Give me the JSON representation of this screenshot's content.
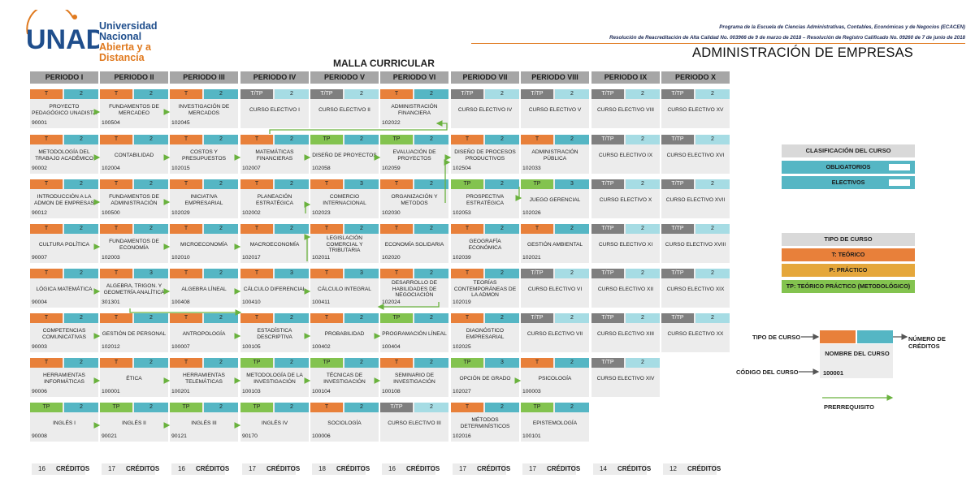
{
  "logo": {
    "brand": "UNAD",
    "line1": "Universidad Nacional",
    "line2": "Abierta y a Distancia"
  },
  "header": {
    "program": "Programa de la Escuela de Ciencias Administrativas, Contables, Económicas y de Negocios (ECACEN)",
    "resolution": "Resolución de Reacreditación de Alta Calidad No. 003966 de 9 de marzo de 2018 – Resolución de Registro Calificado No. 09260 de 7 de junio de 2018",
    "title": "ADMINISTRACIÓN DE EMPRESAS",
    "subtitle": "MALLA CURRICULAR"
  },
  "credits_label": "CRÉDITOS",
  "periods": [
    {
      "name": "PERIODO I",
      "credits": "16",
      "courses": [
        {
          "type": "T",
          "credits": "2",
          "name": "PROYECTO PEDAGÓGICO UNADISTA",
          "code": "90001",
          "kind": "ob"
        },
        {
          "type": "T",
          "credits": "2",
          "name": "METODOLOGÍA DEL TRABAJO ACADÉMICO",
          "code": "90002",
          "kind": "ob"
        },
        {
          "type": "T",
          "credits": "2",
          "name": "INTRODUCCIÓN A LA ADMON DE EMPRESAS",
          "code": "90012",
          "kind": "ob"
        },
        {
          "type": "T",
          "credits": "2",
          "name": "CULTURA POLÍTICA",
          "code": "90007",
          "kind": "ob"
        },
        {
          "type": "T",
          "credits": "2",
          "name": "LÓGICA MATEMÁTICA",
          "code": "90004",
          "kind": "ob"
        },
        {
          "type": "T",
          "credits": "2",
          "name": "COMPETENCIAS COMUNICATIVAS",
          "code": "90003",
          "kind": "ob"
        },
        {
          "type": "T",
          "credits": "2",
          "name": "HERRAMIENTAS INFORMÁTICAS",
          "code": "90006",
          "kind": "ob"
        },
        {
          "type": "TP",
          "credits": "2",
          "name": "INGLÉS I",
          "code": "90008",
          "kind": "ob"
        }
      ]
    },
    {
      "name": "PERIODO II",
      "credits": "17",
      "courses": [
        {
          "type": "T",
          "credits": "2",
          "name": "FUNDAMENTOS DE MERCADEO",
          "code": "100504",
          "kind": "ob"
        },
        {
          "type": "T",
          "credits": "2",
          "name": "CONTABILIDAD",
          "code": "102004",
          "kind": "ob"
        },
        {
          "type": "T",
          "credits": "2",
          "name": "FUNDAMENTOS DE ADMINISTRACIÓN",
          "code": "100500",
          "kind": "ob"
        },
        {
          "type": "T",
          "credits": "2",
          "name": "FUNDAMENTOS DE ECONOMÍA",
          "code": "102003",
          "kind": "ob"
        },
        {
          "type": "T",
          "credits": "3",
          "name": "ALGEBRA, TRIGON. Y GEOMETRÍA ANALÍTICA",
          "code": "301301",
          "kind": "ob"
        },
        {
          "type": "T",
          "credits": "2",
          "name": "GESTIÓN DE PERSONAL",
          "code": "102012",
          "kind": "ob"
        },
        {
          "type": "T",
          "credits": "2",
          "name": "ÉTICA",
          "code": "100001",
          "kind": "ob"
        },
        {
          "type": "TP",
          "credits": "2",
          "name": "INGLÉS II",
          "code": "90021",
          "kind": "ob"
        }
      ]
    },
    {
      "name": "PERIODO III",
      "credits": "16",
      "courses": [
        {
          "type": "T",
          "credits": "2",
          "name": "INVESTIGACIÓN DE MERCADOS",
          "code": "102045",
          "kind": "ob"
        },
        {
          "type": "T",
          "credits": "2",
          "name": "COSTOS Y PRESUPUESTOS",
          "code": "102015",
          "kind": "ob"
        },
        {
          "type": "T",
          "credits": "2",
          "name": "INICIATIVA EMPRESARIAL",
          "code": "102029",
          "kind": "ob"
        },
        {
          "type": "T",
          "credits": "2",
          "name": "MICROECONOMÍA",
          "code": "102010",
          "kind": "ob"
        },
        {
          "type": "T",
          "credits": "2",
          "name": "ALGEBRA LÍNEAL",
          "code": "100408",
          "kind": "ob"
        },
        {
          "type": "T",
          "credits": "2",
          "name": "ANTROPOLOGÍA",
          "code": "100007",
          "kind": "ob"
        },
        {
          "type": "T",
          "credits": "2",
          "name": "HERRAMIENTAS TELEMÁTICAS",
          "code": "100201",
          "kind": "ob"
        },
        {
          "type": "TP",
          "credits": "2",
          "name": "INGLÉS III",
          "code": "90121",
          "kind": "ob"
        }
      ]
    },
    {
      "name": "PERIODO IV",
      "credits": "17",
      "courses": [
        {
          "type": "T/TP",
          "credits": "2",
          "name": "CURSO ELECTIVO I",
          "code": "",
          "kind": "el"
        },
        {
          "type": "T",
          "credits": "2",
          "name": "MATEMÁTICAS FINANCIERAS",
          "code": "102007",
          "kind": "ob"
        },
        {
          "type": "T",
          "credits": "2",
          "name": "PLANEACIÓN ESTRATÉGICA",
          "code": "102002",
          "kind": "ob"
        },
        {
          "type": "T",
          "credits": "2",
          "name": "MACROECONOMÍA",
          "code": "102017",
          "kind": "ob"
        },
        {
          "type": "T",
          "credits": "3",
          "name": "CÁLCULO DIFERENCIAL",
          "code": "100410",
          "kind": "ob"
        },
        {
          "type": "T",
          "credits": "2",
          "name": "ESTADÍSTICA DESCRIPTIVA",
          "code": "100105",
          "kind": "ob"
        },
        {
          "type": "TP",
          "credits": "2",
          "name": "METODOLOGÍA DE LA INVESTIGACIÓN",
          "code": "100103",
          "kind": "ob"
        },
        {
          "type": "TP",
          "credits": "2",
          "name": "INGLÉS IV",
          "code": "90170",
          "kind": "ob"
        }
      ]
    },
    {
      "name": "PERIODO V",
      "credits": "18",
      "courses": [
        {
          "type": "T/TP",
          "credits": "2",
          "name": "CURSO ELECTIVO II",
          "code": "",
          "kind": "el"
        },
        {
          "type": "TP",
          "credits": "2",
          "name": "DISEÑO DE PROYECTOS",
          "code": "102058",
          "kind": "ob"
        },
        {
          "type": "T",
          "credits": "3",
          "name": "COMERCIO INTERNACIONAL",
          "code": "102023",
          "kind": "ob"
        },
        {
          "type": "T",
          "credits": "2",
          "name": "LEGISLACIÓN COMERCIAL Y TRIBUTARIA",
          "code": "102011",
          "kind": "ob"
        },
        {
          "type": "T",
          "credits": "3",
          "name": "CÁLCULO INTEGRAL",
          "code": "100411",
          "kind": "ob"
        },
        {
          "type": "T",
          "credits": "2",
          "name": "PROBABILIDAD",
          "code": "100402",
          "kind": "ob"
        },
        {
          "type": "TP",
          "credits": "2",
          "name": "TÉCNICAS DE INVESTIGACIÓN",
          "code": "100104",
          "kind": "ob"
        },
        {
          "type": "T",
          "credits": "2",
          "name": "SOCIOLOGÍA",
          "code": "100006",
          "kind": "ob"
        }
      ]
    },
    {
      "name": "PERIODO VI",
      "credits": "16",
      "courses": [
        {
          "type": "T",
          "credits": "2",
          "name": "ADMINISTRACIÓN FINANCIERA",
          "code": "102022",
          "kind": "ob"
        },
        {
          "type": "TP",
          "credits": "2",
          "name": "EVALUACIÓN DE PROYECTOS",
          "code": "102059",
          "kind": "ob"
        },
        {
          "type": "T",
          "credits": "2",
          "name": "ORGANIZACIÓN Y METODOS",
          "code": "102030",
          "kind": "ob"
        },
        {
          "type": "T",
          "credits": "2",
          "name": "ECONOMÍA SOLIDARIA",
          "code": "102020",
          "kind": "ob"
        },
        {
          "type": "T",
          "credits": "2",
          "name": "DESARROLLO DE HABILIDADES DE NEGOCIACIÓN",
          "code": "102024",
          "kind": "ob"
        },
        {
          "type": "TP",
          "credits": "2",
          "name": "PROGRAMACIÓN LÍNEAL",
          "code": "100404",
          "kind": "ob"
        },
        {
          "type": "T",
          "credits": "2",
          "name": "SEMINARIO DE INVESTIGACIÓN",
          "code": "100108",
          "kind": "ob"
        },
        {
          "type": "T/TP",
          "credits": "2",
          "name": "CURSO ELECTIVO III",
          "code": "",
          "kind": "el"
        }
      ]
    },
    {
      "name": "PERIODO VII",
      "credits": "17",
      "courses": [
        {
          "type": "T/TP",
          "credits": "2",
          "name": "CURSO ELECTIVO IV",
          "code": "",
          "kind": "el"
        },
        {
          "type": "T",
          "credits": "2",
          "name": "DISEÑO DE PROCESOS PRODUCTIVOS",
          "code": "102504",
          "kind": "ob"
        },
        {
          "type": "TP",
          "credits": "2",
          "name": "PROSPECTIVA ESTRATÉGICA",
          "code": "102053",
          "kind": "ob"
        },
        {
          "type": "T",
          "credits": "2",
          "name": "GEOGRAFÍA ECONÓMICA",
          "code": "102039",
          "kind": "ob"
        },
        {
          "type": "T",
          "credits": "2",
          "name": "TEORÍAS CONTEMPORÁNEAS DE LA ADMON",
          "code": "102019",
          "kind": "ob"
        },
        {
          "type": "T",
          "credits": "2",
          "name": "DIAGNÓSTICO EMPRESARIAL",
          "code": "102025",
          "kind": "ob"
        },
        {
          "type": "TP",
          "credits": "3",
          "name": "OPCIÓN DE GRADO",
          "code": "102027",
          "kind": "ob"
        },
        {
          "type": "T",
          "credits": "2",
          "name": "MÉTODOS DETERMINÍSTICOS",
          "code": "102016",
          "kind": "ob"
        }
      ]
    },
    {
      "name": "PERIODO VIII",
      "credits": "17",
      "courses": [
        {
          "type": "T/TP",
          "credits": "2",
          "name": "CURSO ELECTIVO V",
          "code": "",
          "kind": "el"
        },
        {
          "type": "T",
          "credits": "2",
          "name": "ADMINISTRACIÓN PÚBLICA",
          "code": "102033",
          "kind": "ob"
        },
        {
          "type": "TP",
          "credits": "3",
          "name": "JUEGO GERENCIAL",
          "code": "102026",
          "kind": "ob"
        },
        {
          "type": "T",
          "credits": "2",
          "name": "GESTIÓN AMBIENTAL",
          "code": "102021",
          "kind": "ob"
        },
        {
          "type": "T/TP",
          "credits": "2",
          "name": "CURSO ELECTIVO VI",
          "code": "",
          "kind": "el"
        },
        {
          "type": "T/TP",
          "credits": "2",
          "name": "CURSO ELECTIVO VII",
          "code": "",
          "kind": "el"
        },
        {
          "type": "T",
          "credits": "2",
          "name": "PSICOLOGÍA",
          "code": "100003",
          "kind": "ob"
        },
        {
          "type": "TP",
          "credits": "2",
          "name": "EPISTEMOLOGÍA",
          "code": "100101",
          "kind": "ob"
        }
      ]
    },
    {
      "name": "PERIODO IX",
      "credits": "14",
      "courses": [
        {
          "type": "T/TP",
          "credits": "2",
          "name": "CURSO ELECTIVO VIII",
          "code": "",
          "kind": "el"
        },
        {
          "type": "T/TP",
          "credits": "2",
          "name": "CURSO ELECTIVO IX",
          "code": "",
          "kind": "el"
        },
        {
          "type": "T/TP",
          "credits": "2",
          "name": "CURSO ELECTIVO X",
          "code": "",
          "kind": "el"
        },
        {
          "type": "T/TP",
          "credits": "2",
          "name": "CURSO ELECTIVO XI",
          "code": "",
          "kind": "el"
        },
        {
          "type": "T/TP",
          "credits": "2",
          "name": "CURSO ELECTIVO XII",
          "code": "",
          "kind": "el"
        },
        {
          "type": "T/TP",
          "credits": "2",
          "name": "CURSO ELECTIVO XIII",
          "code": "",
          "kind": "el"
        },
        {
          "type": "T/TP",
          "credits": "2",
          "name": "CURSO ELECTIVO XIV",
          "code": "",
          "kind": "el"
        }
      ]
    },
    {
      "name": "PERIODO X",
      "credits": "12",
      "courses": [
        {
          "type": "T/TP",
          "credits": "2",
          "name": "CURSO ELECTIVO XV",
          "code": "",
          "kind": "el"
        },
        {
          "type": "T/TP",
          "credits": "2",
          "name": "CURSO ELECTIVO XVI",
          "code": "",
          "kind": "el"
        },
        {
          "type": "T/TP",
          "credits": "2",
          "name": "CURSO ELECTIVO XVII",
          "code": "",
          "kind": "el"
        },
        {
          "type": "T/TP",
          "credits": "2",
          "name": "CURSO ELECTIVO XVIII",
          "code": "",
          "kind": "el"
        },
        {
          "type": "T/TP",
          "credits": "2",
          "name": "CURSO ELECTIVO XIX",
          "code": "",
          "kind": "el"
        },
        {
          "type": "T/TP",
          "credits": "2",
          "name": "CURSO ELECTIVO XX",
          "code": "",
          "kind": "el"
        }
      ]
    }
  ],
  "legend": {
    "classification": {
      "title": "CLASIFICACIÓN DEL CURSO",
      "mandatory": "OBLIGATORIOS",
      "elective": "ELECTIVOS"
    },
    "course_type": {
      "title": "TIPO DE CURSO",
      "t": "T: TEÓRICO",
      "p": "P: PRÁCTICO",
      "tp": "TP: TEÓRICO PRÁCTICO (METODOLÓGICO)"
    },
    "example": {
      "type_label": "TIPO DE CURSO",
      "credits_label": "NÚMERO DE CRÉDITOS",
      "name_label": "NOMBRE DEL CURSO",
      "code_label": "CÓDIGO DEL CURSO",
      "code_value": "100001"
    },
    "prerequisite": "PRERREQUISITO"
  },
  "colors": {
    "theoretical": "#e8803a",
    "practical": "#e5a73b",
    "theoretical_practical": "#83c34f",
    "elective_type": "#7f7f7f",
    "mandatory": "#55b6c4",
    "elective": "#a6dce4",
    "arrow": "#6ab23e"
  }
}
